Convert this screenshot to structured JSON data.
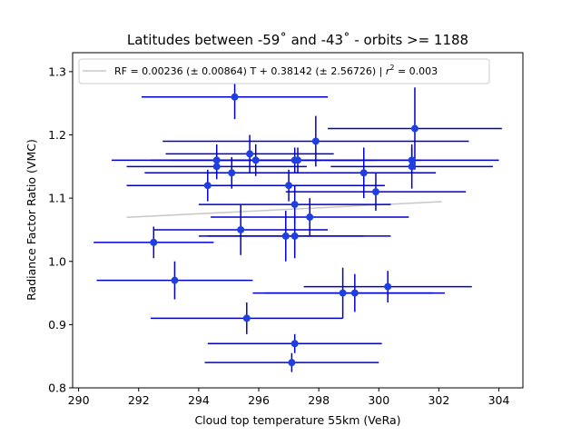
{
  "chart_data": {
    "type": "scatter",
    "title": "Latitudes between -59˚ and -43˚ - orbits >= 1188",
    "xlabel": "Cloud top temperature 55km (VeRa)",
    "ylabel": "Radiance Factor Ratio (VMC)",
    "xlim": [
      289.8,
      304.8
    ],
    "ylim": [
      0.8,
      1.33
    ],
    "xticks": [
      "290",
      "292",
      "294",
      "296",
      "298",
      "300",
      "302",
      "304"
    ],
    "yticks": [
      "0.8",
      "0.9",
      "1.0",
      "1.1",
      "1.2",
      "1.3"
    ],
    "grid": false,
    "legend": {
      "placement": "top-left",
      "text_prefix": "RF = 0.00236 (± 0.00864) T + 0.38142 (± 2.56726) | ",
      "text_r": "r",
      "text_exp": "2",
      "text_suffix": " = 0.003"
    },
    "colors": {
      "points": "#1f3fe0",
      "errorbars": "#0000cc",
      "fit": "#c8c8c8"
    },
    "fit": {
      "slope": 0.00236,
      "intercept": 0.38142,
      "x_range": [
        291.6,
        302.1
      ]
    },
    "points": [
      {
        "x": 295.2,
        "y": 1.26,
        "xerr": 3.1,
        "yerr": 0.035
      },
      {
        "x": 301.2,
        "y": 1.21,
        "xerr": 2.9,
        "yerr": 0.065
      },
      {
        "x": 297.9,
        "y": 1.19,
        "xerr": 5.1,
        "yerr": 0.04
      },
      {
        "x": 295.7,
        "y": 1.17,
        "xerr": 2.8,
        "yerr": 0.03
      },
      {
        "x": 294.6,
        "y": 1.16,
        "xerr": 3.5,
        "yerr": 0.025
      },
      {
        "x": 295.9,
        "y": 1.16,
        "xerr": 3.5,
        "yerr": 0.025
      },
      {
        "x": 297.2,
        "y": 1.16,
        "xerr": 4.2,
        "yerr": 0.02
      },
      {
        "x": 297.3,
        "y": 1.16,
        "xerr": 2.6,
        "yerr": 0.02
      },
      {
        "x": 301.1,
        "y": 1.16,
        "xerr": 2.9,
        "yerr": 0.02
      },
      {
        "x": 294.6,
        "y": 1.15,
        "xerr": 3.0,
        "yerr": 0.02
      },
      {
        "x": 301.1,
        "y": 1.15,
        "xerr": 2.7,
        "yerr": 0.035
      },
      {
        "x": 295.1,
        "y": 1.14,
        "xerr": 2.9,
        "yerr": 0.025
      },
      {
        "x": 299.5,
        "y": 1.14,
        "xerr": 2.4,
        "yerr": 0.04
      },
      {
        "x": 294.3,
        "y": 1.12,
        "xerr": 2.7,
        "yerr": 0.025
      },
      {
        "x": 297.0,
        "y": 1.12,
        "xerr": 3.2,
        "yerr": 0.025
      },
      {
        "x": 299.9,
        "y": 1.11,
        "xerr": 3.0,
        "yerr": 0.03
      },
      {
        "x": 297.2,
        "y": 1.09,
        "xerr": 3.2,
        "yerr": 0.03
      },
      {
        "x": 297.7,
        "y": 1.07,
        "xerr": 3.3,
        "yerr": 0.03
      },
      {
        "x": 295.4,
        "y": 1.05,
        "xerr": 2.9,
        "yerr": 0.04
      },
      {
        "x": 296.9,
        "y": 1.04,
        "xerr": 2.6,
        "yerr": 0.04
      },
      {
        "x": 297.2,
        "y": 1.04,
        "xerr": 3.2,
        "yerr": 0.035
      },
      {
        "x": 292.5,
        "y": 1.03,
        "xerr": 2.0,
        "yerr": 0.025
      },
      {
        "x": 293.2,
        "y": 0.97,
        "xerr": 2.6,
        "yerr": 0.03
      },
      {
        "x": 300.3,
        "y": 0.96,
        "xerr": 2.8,
        "yerr": 0.025
      },
      {
        "x": 298.8,
        "y": 0.95,
        "xerr": 3.0,
        "yerr": 0.04
      },
      {
        "x": 299.2,
        "y": 0.95,
        "xerr": 3.0,
        "yerr": 0.03
      },
      {
        "x": 295.6,
        "y": 0.91,
        "xerr": 3.2,
        "yerr": 0.025
      },
      {
        "x": 297.2,
        "y": 0.87,
        "xerr": 2.9,
        "yerr": 0.015
      },
      {
        "x": 297.1,
        "y": 0.84,
        "xerr": 2.9,
        "yerr": 0.015
      }
    ]
  }
}
